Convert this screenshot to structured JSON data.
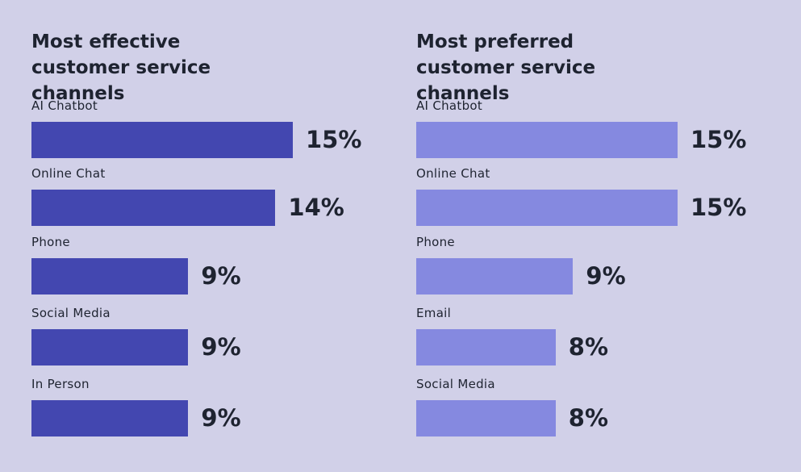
{
  "chart_data": [
    {
      "type": "bar",
      "orientation": "horizontal",
      "title": "Most effective customer service channels",
      "categories": [
        "AI Chatbot",
        "Online Chat",
        "Phone",
        "Social Media",
        "In Person"
      ],
      "values": [
        15,
        14,
        9,
        9,
        9
      ],
      "value_labels": [
        "15%",
        "14%",
        "9%",
        "9%",
        "9%"
      ],
      "color": "#4347b0"
    },
    {
      "type": "bar",
      "orientation": "horizontal",
      "title": "Most preferred customer service channels",
      "categories": [
        "AI Chatbot",
        "Online Chat",
        "Phone",
        "Email",
        "Social Media"
      ],
      "values": [
        15,
        15,
        9,
        8,
        8
      ],
      "value_labels": [
        "15%",
        "15%",
        "9%",
        "8%",
        "8%"
      ],
      "color": "#8589e0"
    }
  ]
}
